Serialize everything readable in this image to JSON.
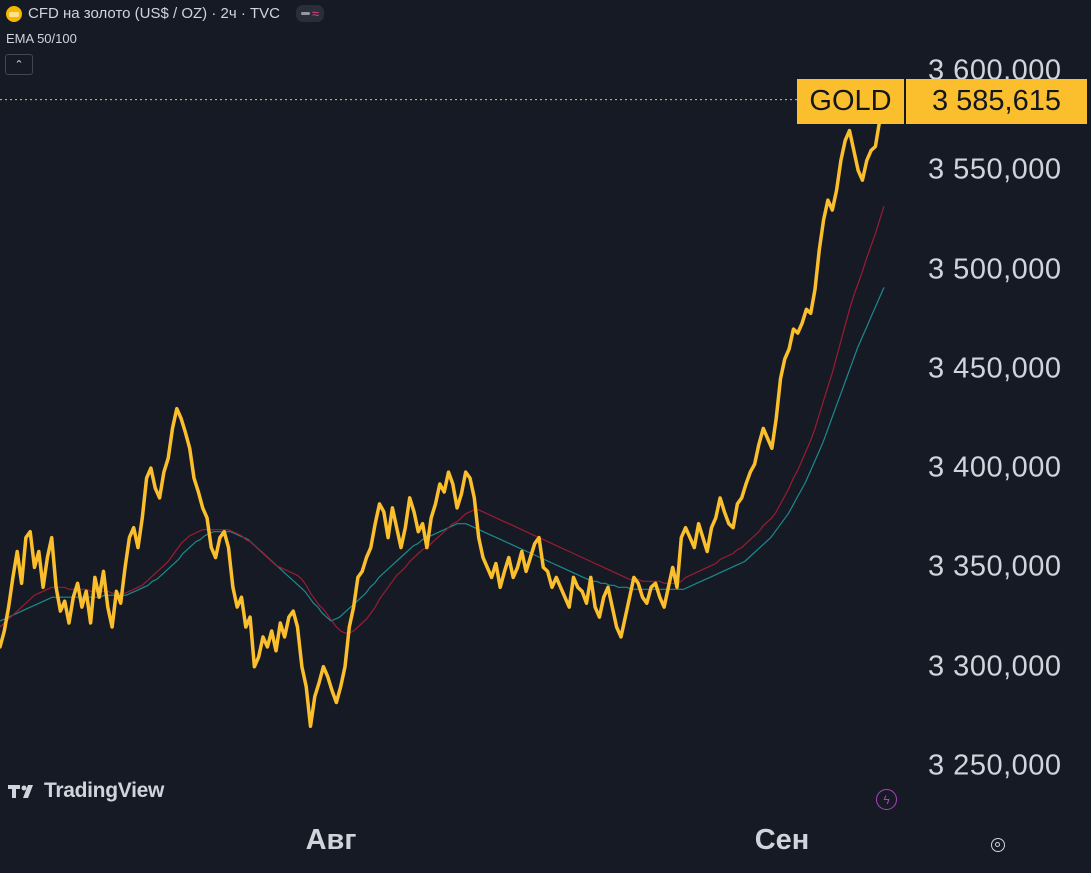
{
  "header": {
    "title": "CFD на золото (US$ / OZ) · 2ч · TVC",
    "symbol_icon": "gold-bars-icon",
    "indicator_label": "EMA 50/100",
    "collapse_symbol": "⌃"
  },
  "logo": {
    "text": "TradingView"
  },
  "price_tag": {
    "symbol": "GOLD",
    "value": "3 585,615"
  },
  "colors": {
    "background": "#161a25",
    "price_line": "#fbbf2d",
    "ema_50": "#9b1c31",
    "ema_100": "#1c8a8f",
    "text": "#d1d4dc",
    "last_price_line": "#fbbf2d"
  },
  "chart_data": {
    "type": "line",
    "x_labels": [
      "Авг",
      "Сен"
    ],
    "y_tick_labels": [
      "3 600,000",
      "3 550,000",
      "3 500,000",
      "3 450,000",
      "3 400,000",
      "3 350,000",
      "3 300,000",
      "3 250,000"
    ],
    "y_ticks": [
      3600,
      3550,
      3500,
      3450,
      3400,
      3350,
      3300,
      3250
    ],
    "ylim": [
      3230,
      3630
    ],
    "last_value": 3585.615,
    "grid": false,
    "series": [
      {
        "key": "price",
        "values": [
          3310,
          3318,
          3330,
          3345,
          3358,
          3342,
          3365,
          3368,
          3350,
          3358,
          3340,
          3355,
          3365,
          3340,
          3328,
          3333,
          3322,
          3335,
          3342,
          3330,
          3338,
          3322,
          3345,
          3335,
          3348,
          3330,
          3320,
          3338,
          3332,
          3350,
          3365,
          3370,
          3360,
          3375,
          3395,
          3400,
          3390,
          3385,
          3398,
          3405,
          3420,
          3430,
          3425,
          3418,
          3410,
          3395,
          3388,
          3380,
          3375,
          3360,
          3355,
          3365,
          3368,
          3360,
          3340,
          3330,
          3335,
          3320,
          3325,
          3300,
          3305,
          3315,
          3310,
          3318,
          3308,
          3322,
          3315,
          3325,
          3328,
          3320,
          3300,
          3290,
          3270,
          3285,
          3292,
          3300,
          3295,
          3288,
          3282,
          3290,
          3300,
          3320,
          3330,
          3345,
          3348,
          3355,
          3360,
          3372,
          3382,
          3378,
          3365,
          3380,
          3370,
          3360,
          3370,
          3385,
          3378,
          3368,
          3372,
          3360,
          3375,
          3382,
          3392,
          3388,
          3398,
          3392,
          3380,
          3387,
          3398,
          3395,
          3385,
          3365,
          3355,
          3350,
          3345,
          3352,
          3340,
          3348,
          3355,
          3345,
          3350,
          3358,
          3348,
          3355,
          3362,
          3365,
          3350,
          3348,
          3340,
          3345,
          3340,
          3335,
          3330,
          3345,
          3340,
          3338,
          3332,
          3345,
          3330,
          3325,
          3335,
          3340,
          3330,
          3320,
          3315,
          3325,
          3335,
          3345,
          3342,
          3335,
          3332,
          3340,
          3342,
          3335,
          3330,
          3340,
          3350,
          3340,
          3365,
          3370,
          3365,
          3360,
          3372,
          3365,
          3358,
          3370,
          3375,
          3385,
          3378,
          3372,
          3370,
          3382,
          3385,
          3392,
          3398,
          3402,
          3412,
          3420,
          3415,
          3410,
          3425,
          3445,
          3455,
          3460,
          3470,
          3468,
          3473,
          3480,
          3478,
          3490,
          3510,
          3525,
          3535,
          3530,
          3540,
          3555,
          3565,
          3570,
          3560,
          3550,
          3545,
          3555,
          3560,
          3562,
          3575,
          3585
        ]
      },
      {
        "key": "ema_50",
        "values": [
          3320,
          3322,
          3324,
          3326,
          3328,
          3330,
          3332,
          3334,
          3336,
          3337,
          3338,
          3339,
          3340,
          3340,
          3340,
          3340,
          3339,
          3339,
          3339,
          3339,
          3339,
          3338,
          3338,
          3338,
          3338,
          3338,
          3337,
          3337,
          3337,
          3337,
          3338,
          3339,
          3340,
          3341,
          3343,
          3345,
          3347,
          3349,
          3351,
          3353,
          3356,
          3359,
          3362,
          3364,
          3366,
          3367,
          3368,
          3369,
          3369,
          3369,
          3369,
          3369,
          3369,
          3369,
          3368,
          3367,
          3366,
          3364,
          3363,
          3361,
          3359,
          3357,
          3355,
          3353,
          3351,
          3350,
          3349,
          3348,
          3347,
          3346,
          3344,
          3341,
          3337,
          3334,
          3331,
          3329,
          3326,
          3323,
          3320,
          3318,
          3317,
          3317,
          3318,
          3320,
          3322,
          3324,
          3327,
          3330,
          3334,
          3337,
          3340,
          3343,
          3346,
          3348,
          3350,
          3353,
          3355,
          3357,
          3359,
          3360,
          3362,
          3364,
          3366,
          3368,
          3370,
          3372,
          3373,
          3375,
          3377,
          3378,
          3379,
          3379,
          3378,
          3377,
          3376,
          3375,
          3374,
          3373,
          3372,
          3371,
          3370,
          3369,
          3368,
          3367,
          3366,
          3365,
          3364,
          3363,
          3362,
          3361,
          3360,
          3359,
          3358,
          3357,
          3356,
          3355,
          3354,
          3353,
          3352,
          3351,
          3350,
          3349,
          3348,
          3347,
          3346,
          3345,
          3344,
          3344,
          3344,
          3343,
          3343,
          3343,
          3343,
          3343,
          3342,
          3342,
          3342,
          3342,
          3343,
          3345,
          3346,
          3347,
          3348,
          3349,
          3350,
          3351,
          3352,
          3354,
          3355,
          3356,
          3357,
          3359,
          3360,
          3362,
          3364,
          3366,
          3368,
          3371,
          3373,
          3375,
          3378,
          3382,
          3386,
          3390,
          3395,
          3399,
          3404,
          3409,
          3414,
          3420,
          3427,
          3434,
          3441,
          3448,
          3456,
          3464,
          3472,
          3480,
          3487,
          3493,
          3499,
          3506,
          3512,
          3518,
          3525,
          3532
        ]
      },
      {
        "key": "ema_100",
        "values": [
          3323,
          3324,
          3325,
          3326,
          3327,
          3328,
          3329,
          3330,
          3331,
          3332,
          3333,
          3334,
          3335,
          3335,
          3335,
          3335,
          3335,
          3335,
          3335,
          3335,
          3335,
          3335,
          3335,
          3335,
          3336,
          3336,
          3336,
          3336,
          3336,
          3336,
          3337,
          3338,
          3339,
          3340,
          3341,
          3343,
          3344,
          3346,
          3348,
          3350,
          3352,
          3354,
          3357,
          3359,
          3361,
          3363,
          3364,
          3366,
          3367,
          3368,
          3368,
          3368,
          3368,
          3368,
          3367,
          3366,
          3365,
          3364,
          3362,
          3360,
          3358,
          3356,
          3354,
          3352,
          3350,
          3348,
          3346,
          3344,
          3342,
          3340,
          3338,
          3335,
          3332,
          3330,
          3327,
          3325,
          3323,
          3324,
          3325,
          3327,
          3329,
          3331,
          3333,
          3335,
          3337,
          3340,
          3342,
          3345,
          3347,
          3349,
          3351,
          3353,
          3355,
          3357,
          3359,
          3361,
          3362,
          3364,
          3365,
          3366,
          3367,
          3368,
          3369,
          3370,
          3371,
          3372,
          3372,
          3372,
          3371,
          3370,
          3369,
          3368,
          3367,
          3366,
          3365,
          3364,
          3363,
          3362,
          3361,
          3360,
          3359,
          3358,
          3357,
          3356,
          3355,
          3354,
          3353,
          3352,
          3351,
          3350,
          3349,
          3348,
          3347,
          3346,
          3345,
          3344,
          3343,
          3343,
          3342,
          3342,
          3341,
          3341,
          3340,
          3340,
          3340,
          3339,
          3339,
          3339,
          3339,
          3339,
          3339,
          3339,
          3339,
          3339,
          3339,
          3339,
          3339,
          3339,
          3340,
          3341,
          3342,
          3343,
          3344,
          3345,
          3346,
          3347,
          3348,
          3349,
          3350,
          3351,
          3352,
          3353,
          3355,
          3357,
          3359,
          3361,
          3363,
          3365,
          3368,
          3371,
          3374,
          3377,
          3381,
          3385,
          3389,
          3393,
          3398,
          3403,
          3408,
          3413,
          3419,
          3425,
          3431,
          3437,
          3443,
          3449,
          3455,
          3461,
          3466,
          3471,
          3476,
          3481,
          3486,
          3491
        ]
      }
    ]
  }
}
